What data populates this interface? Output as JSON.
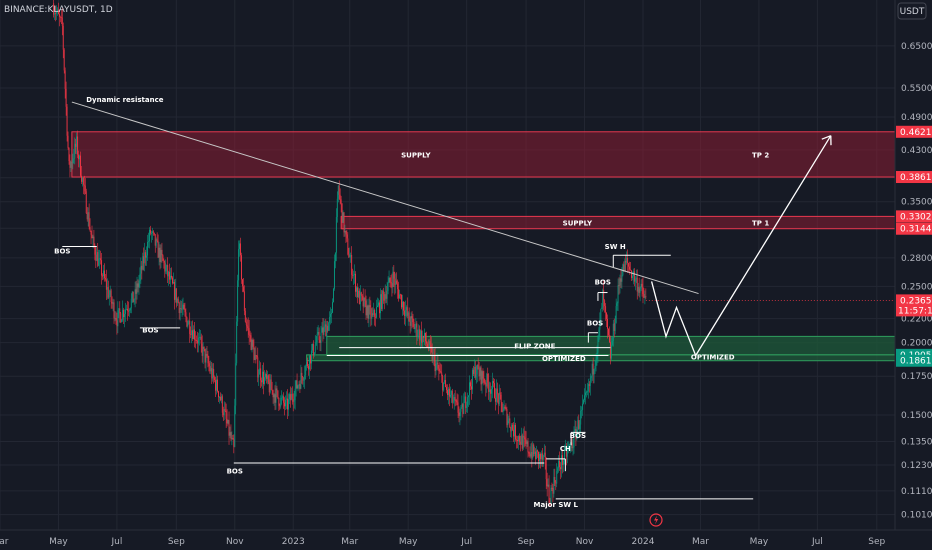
{
  "chart_data": {
    "type": "candlestick",
    "symbol_label": "BINANCE:KLAYUSDT, 1D",
    "currency": "USDT",
    "y_scale": "log",
    "ylim": [
      0.095,
      0.78
    ],
    "y_ticks": [
      "0.6500",
      "0.5500",
      "0.4900",
      "0.4300",
      "0.3850",
      "0.3500",
      "0.3150",
      "0.2800",
      "0.2500",
      "0.2200",
      "0.2000",
      "0.1750",
      "0.1500",
      "0.1350",
      "0.1230",
      "0.1110",
      "0.1010"
    ],
    "y_tick_values": [
      0.65,
      0.55,
      0.49,
      0.43,
      0.385,
      0.35,
      0.315,
      0.28,
      0.25,
      0.22,
      0.2,
      0.175,
      0.15,
      0.135,
      0.123,
      0.111,
      0.101
    ],
    "x_range": [
      "2022-03-01",
      "2024-09-20"
    ],
    "x_ticks": [
      {
        "date": "2022-03-01",
        "label": "Mar"
      },
      {
        "date": "2022-05-01",
        "label": "May"
      },
      {
        "date": "2022-07-01",
        "label": "Jul"
      },
      {
        "date": "2022-09-01",
        "label": "Sep"
      },
      {
        "date": "2022-11-01",
        "label": "Nov"
      },
      {
        "date": "2023-01-01",
        "label": "2023"
      },
      {
        "date": "2023-03-01",
        "label": "Mar"
      },
      {
        "date": "2023-05-01",
        "label": "May"
      },
      {
        "date": "2023-07-01",
        "label": "Jul"
      },
      {
        "date": "2023-09-01",
        "label": "Sep"
      },
      {
        "date": "2023-11-01",
        "label": "Nov"
      },
      {
        "date": "2024-01-01",
        "label": "2024"
      },
      {
        "date": "2024-03-01",
        "label": "Mar"
      },
      {
        "date": "2024-05-01",
        "label": "May"
      },
      {
        "date": "2024-07-01",
        "label": "Jul"
      },
      {
        "date": "2024-09-01",
        "label": "Sep"
      }
    ],
    "price_path": [
      {
        "date": "2022-04-25",
        "price": 0.77
      },
      {
        "date": "2022-05-05",
        "price": 0.7
      },
      {
        "date": "2022-05-12",
        "price": 0.4
      },
      {
        "date": "2022-05-20",
        "price": 0.44
      },
      {
        "date": "2022-06-05",
        "price": 0.3
      },
      {
        "date": "2022-06-20",
        "price": 0.25
      },
      {
        "date": "2022-07-01",
        "price": 0.22
      },
      {
        "date": "2022-07-20",
        "price": 0.24
      },
      {
        "date": "2022-08-05",
        "price": 0.31
      },
      {
        "date": "2022-08-20",
        "price": 0.27
      },
      {
        "date": "2022-09-05",
        "price": 0.23
      },
      {
        "date": "2022-09-25",
        "price": 0.2
      },
      {
        "date": "2022-10-15",
        "price": 0.165
      },
      {
        "date": "2022-10-31",
        "price": 0.13
      },
      {
        "date": "2022-11-05",
        "price": 0.3
      },
      {
        "date": "2022-11-12",
        "price": 0.22
      },
      {
        "date": "2022-11-25",
        "price": 0.18
      },
      {
        "date": "2022-12-10",
        "price": 0.165
      },
      {
        "date": "2022-12-25",
        "price": 0.155
      },
      {
        "date": "2023-01-10",
        "price": 0.175
      },
      {
        "date": "2023-01-25",
        "price": 0.2
      },
      {
        "date": "2023-02-10",
        "price": 0.22
      },
      {
        "date": "2023-02-17",
        "price": 0.37
      },
      {
        "date": "2023-02-25",
        "price": 0.3
      },
      {
        "date": "2023-03-10",
        "price": 0.24
      },
      {
        "date": "2023-03-25",
        "price": 0.22
      },
      {
        "date": "2023-04-15",
        "price": 0.26
      },
      {
        "date": "2023-05-01",
        "price": 0.22
      },
      {
        "date": "2023-05-20",
        "price": 0.2
      },
      {
        "date": "2023-06-10",
        "price": 0.165
      },
      {
        "date": "2023-06-25",
        "price": 0.15
      },
      {
        "date": "2023-07-10",
        "price": 0.18
      },
      {
        "date": "2023-07-30",
        "price": 0.165
      },
      {
        "date": "2023-08-20",
        "price": 0.14
      },
      {
        "date": "2023-09-05",
        "price": 0.13
      },
      {
        "date": "2023-09-20",
        "price": 0.125
      },
      {
        "date": "2023-09-25",
        "price": 0.108
      },
      {
        "date": "2023-10-05",
        "price": 0.122
      },
      {
        "date": "2023-10-20",
        "price": 0.135
      },
      {
        "date": "2023-11-05",
        "price": 0.165
      },
      {
        "date": "2023-11-15",
        "price": 0.2
      },
      {
        "date": "2023-11-20",
        "price": 0.24
      },
      {
        "date": "2023-11-28",
        "price": 0.19
      },
      {
        "date": "2023-12-08",
        "price": 0.26
      },
      {
        "date": "2023-12-15",
        "price": 0.275
      },
      {
        "date": "2023-12-25",
        "price": 0.255
      },
      {
        "date": "2024-01-04",
        "price": 0.2365
      }
    ],
    "zones": [
      {
        "name": "SUPPLY",
        "label": "SUPPLY",
        "target": "TP 2",
        "top": 0.4621,
        "bottom": 0.3861,
        "color": "#8b1e33",
        "start": "2022-05-15"
      },
      {
        "name": "SUPPLY",
        "label": "SUPPLY",
        "target": "TP 1",
        "top": 0.3302,
        "bottom": 0.3144,
        "color": "#8b1e33",
        "start": "2023-02-20"
      },
      {
        "name": "FLIP ZONE",
        "label": "FLIP ZONE",
        "top": 0.205,
        "bottom": 0.1905,
        "color": "#1e5a3a",
        "start": "2023-02-05"
      },
      {
        "name": "OPTIMIZED",
        "label": "OPTIMIZED",
        "top": 0.1905,
        "bottom": 0.1861,
        "color": "#1e5a3a",
        "start": "2023-01-15"
      }
    ],
    "price_tags": [
      {
        "value": 0.4621,
        "text": "0.4621",
        "color": "#f23645"
      },
      {
        "value": 0.3861,
        "text": "0.3861",
        "color": "#f23645"
      },
      {
        "value": 0.3302,
        "text": "0.3302",
        "color": "#f23645"
      },
      {
        "value": 0.3144,
        "text": "0.3144",
        "color": "#f23645"
      },
      {
        "value": 0.1905,
        "text": "0.1905",
        "color": "#089981"
      },
      {
        "value": 0.1861,
        "text": "0.1861",
        "color": "#089981"
      }
    ],
    "current_price": {
      "value": 0.2365,
      "text": "0.2365",
      "countdown": "11:57:11",
      "color": "#f23645"
    },
    "annotations": [
      {
        "text": "Dynamic resistance",
        "date": "2022-05-30",
        "price": 0.52
      },
      {
        "text": "BOS",
        "date": "2022-05-05",
        "price": 0.285
      },
      {
        "text": "BOS",
        "date": "2022-08-05",
        "price": 0.208
      },
      {
        "text": "BOS",
        "date": "2022-11-01",
        "price": 0.119
      },
      {
        "text": "CH",
        "date": "2023-10-12",
        "price": 0.13
      },
      {
        "text": "BOS",
        "date": "2023-10-25",
        "price": 0.137
      },
      {
        "text": "BOS",
        "date": "2023-11-12",
        "price": 0.214
      },
      {
        "text": "BOS",
        "date": "2023-11-20",
        "price": 0.252
      },
      {
        "text": "SW H",
        "date": "2023-12-03",
        "price": 0.29
      },
      {
        "text": "Major SW L",
        "date": "2023-10-02",
        "price": 0.104
      }
    ],
    "colors": {
      "up": "#089981",
      "down": "#f23645",
      "line": "#ffffff",
      "grid": "#232733"
    }
  }
}
